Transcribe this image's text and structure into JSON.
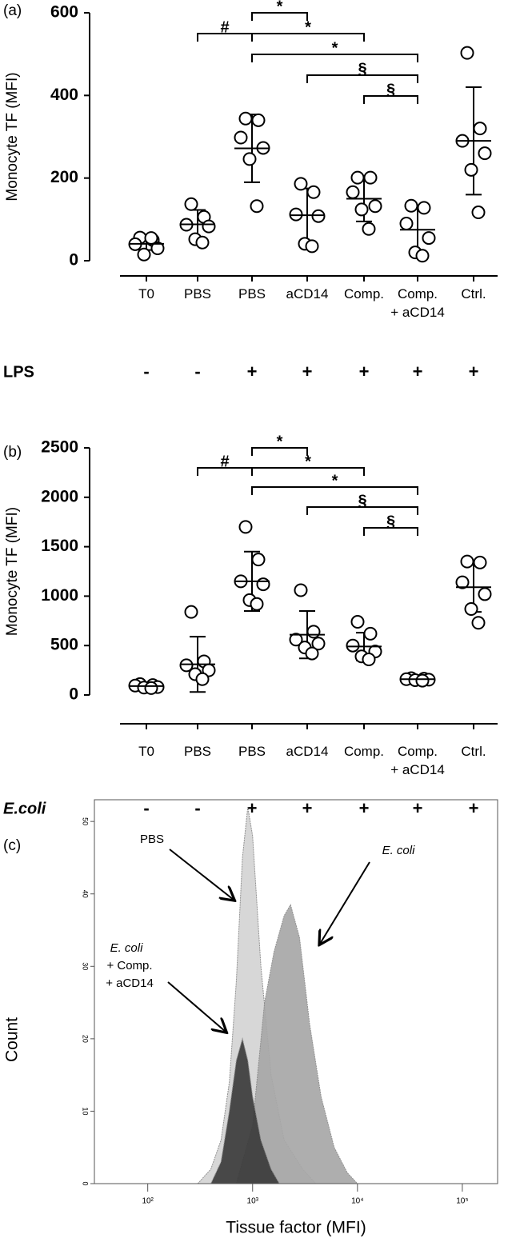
{
  "chart_data": [
    {
      "type": "dotplot",
      "panel_label": "(a)",
      "y_label": "Monocyte TF (MFI)",
      "categories": [
        "T0",
        "PBS",
        "PBS",
        "aCD14",
        "Comp.",
        "Comp.\n+ aCD14",
        "Ctrl."
      ],
      "points": [
        [
          56,
          50,
          40,
          30,
          15,
          55
        ],
        [
          137,
          106,
          87,
          83,
          52,
          44
        ],
        [
          344,
          340,
          298,
          273,
          246,
          132
        ],
        [
          186,
          166,
          112,
          108,
          41,
          35
        ],
        [
          201,
          201,
          166,
          132,
          124,
          77
        ],
        [
          133,
          128,
          90,
          55,
          20,
          12
        ],
        [
          503,
          320,
          290,
          260,
          220,
          117
        ]
      ],
      "mean": [
        41,
        88,
        272,
        110,
        150,
        75,
        290
      ],
      "sd": [
        15,
        35,
        82,
        65,
        55,
        50,
        130
      ],
      "ylim": [
        0,
        600
      ],
      "yticks": [
        0,
        200,
        400,
        600
      ],
      "significance": [
        "#",
        "*",
        "*",
        "*",
        "§",
        "§"
      ],
      "treatment": {
        "label": "LPS",
        "values": [
          "-",
          "-",
          "+",
          "+",
          "+",
          "+",
          "+"
        ]
      }
    },
    {
      "type": "dotplot",
      "panel_label": "(b)",
      "y_label": "Monocyte TF (MFI)",
      "categories": [
        "T0",
        "PBS",
        "PBS",
        "aCD14",
        "Comp.",
        "Comp.\n+ aCD14",
        "Ctrl."
      ],
      "points": [
        [
          110,
          100,
          95,
          80,
          75,
          70
        ],
        [
          840,
          340,
          300,
          250,
          210,
          160
        ],
        [
          1700,
          1370,
          1150,
          1120,
          960,
          920
        ],
        [
          1060,
          640,
          560,
          520,
          480,
          420
        ],
        [
          740,
          620,
          500,
          440,
          390,
          360
        ],
        [
          170,
          165,
          160,
          155,
          150,
          145
        ],
        [
          1350,
          1340,
          1140,
          1020,
          870,
          730
        ]
      ],
      "mean": [
        90,
        310,
        1150,
        610,
        490,
        160,
        1090
      ],
      "sd": [
        15,
        280,
        300,
        240,
        140,
        15,
        250
      ],
      "ylim": [
        0,
        2500
      ],
      "yticks": [
        0,
        500,
        1000,
        1500,
        2000,
        2500
      ],
      "significance": [
        "#",
        "*",
        "*",
        "*",
        "§",
        "§"
      ],
      "treatment": {
        "label": "E.coli",
        "values": [
          "-",
          "-",
          "+",
          "+",
          "+",
          "+",
          "+"
        ]
      }
    },
    {
      "type": "histogram",
      "panel_label": "(c)",
      "y_label": "Count",
      "x_label": "Tissue factor (MFI)",
      "xscale": "log",
      "xlim": [
        31,
        217000
      ],
      "xticks": [
        {
          "value": 100,
          "label": "10²"
        },
        {
          "value": 1000,
          "label": "10³"
        },
        {
          "value": 10000,
          "label": "10⁴"
        },
        {
          "value": 100000,
          "label": "10⁵"
        }
      ],
      "ylim": [
        0,
        53
      ],
      "yticks": [
        0,
        10,
        20,
        30,
        40,
        50
      ],
      "series": [
        {
          "label": [
            "PBS"
          ],
          "color": "#d4d4d4",
          "x": [
            300,
            400,
            500,
            600,
            700,
            800,
            900,
            1000,
            1200,
            1500,
            2000,
            3000,
            4000
          ],
          "counts": [
            0,
            2,
            6,
            14,
            28,
            45,
            52,
            48,
            30,
            15,
            6,
            2,
            0
          ]
        },
        {
          "label": [
            "E. coli"
          ],
          "color": "#a8a8a8",
          "x": [
            700,
            1000,
            1300,
            1600,
            2000,
            2300,
            2800,
            3500,
            4500,
            6000,
            8000,
            10000
          ],
          "counts": [
            0,
            8,
            25,
            32,
            37,
            38.5,
            34,
            22,
            12,
            5,
            1.5,
            0
          ]
        },
        {
          "label": [
            "E. coli",
            "+ Comp.",
            "+ aCD14"
          ],
          "color": "#3c3c3c",
          "x": [
            400,
            500,
            600,
            700,
            800,
            900,
            1000,
            1200,
            1500,
            1800
          ],
          "counts": [
            0,
            3,
            10,
            17,
            20,
            17,
            12,
            6,
            2,
            0
          ]
        }
      ]
    }
  ]
}
